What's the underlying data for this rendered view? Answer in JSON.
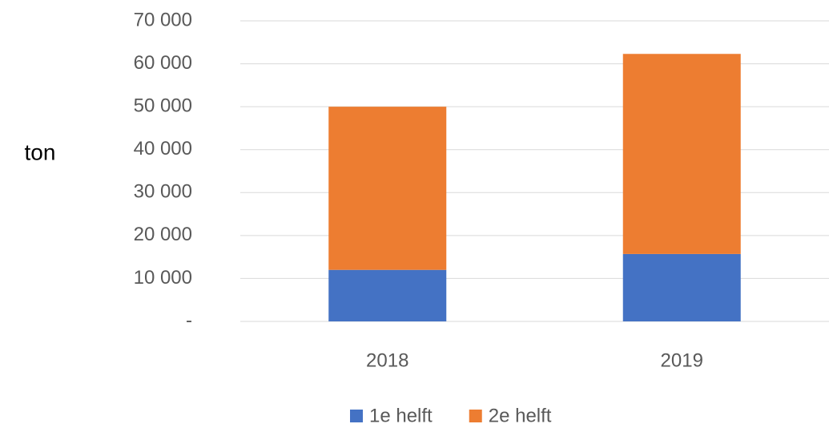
{
  "chart_data": {
    "type": "stacked_bar",
    "y_axis_label": "ton",
    "categories": [
      "2018",
      "2019"
    ],
    "series": [
      {
        "name": "1e helft",
        "color": "#4472c4",
        "values": [
          12000,
          15700
        ]
      },
      {
        "name": "2e helft",
        "color": "#ed7d31",
        "values": [
          38000,
          46600
        ]
      }
    ],
    "ylim": [
      0,
      70000
    ],
    "yticks": [
      {
        "value": 0,
        "label": "-"
      },
      {
        "value": 10000,
        "label": "10 000"
      },
      {
        "value": 20000,
        "label": "20 000"
      },
      {
        "value": 30000,
        "label": "30 000"
      },
      {
        "value": 40000,
        "label": "40 000"
      },
      {
        "value": 50000,
        "label": "50 000"
      },
      {
        "value": 60000,
        "label": "60 000"
      },
      {
        "value": 70000,
        "label": "70 000"
      }
    ],
    "grid": true,
    "legend": "bottom"
  }
}
